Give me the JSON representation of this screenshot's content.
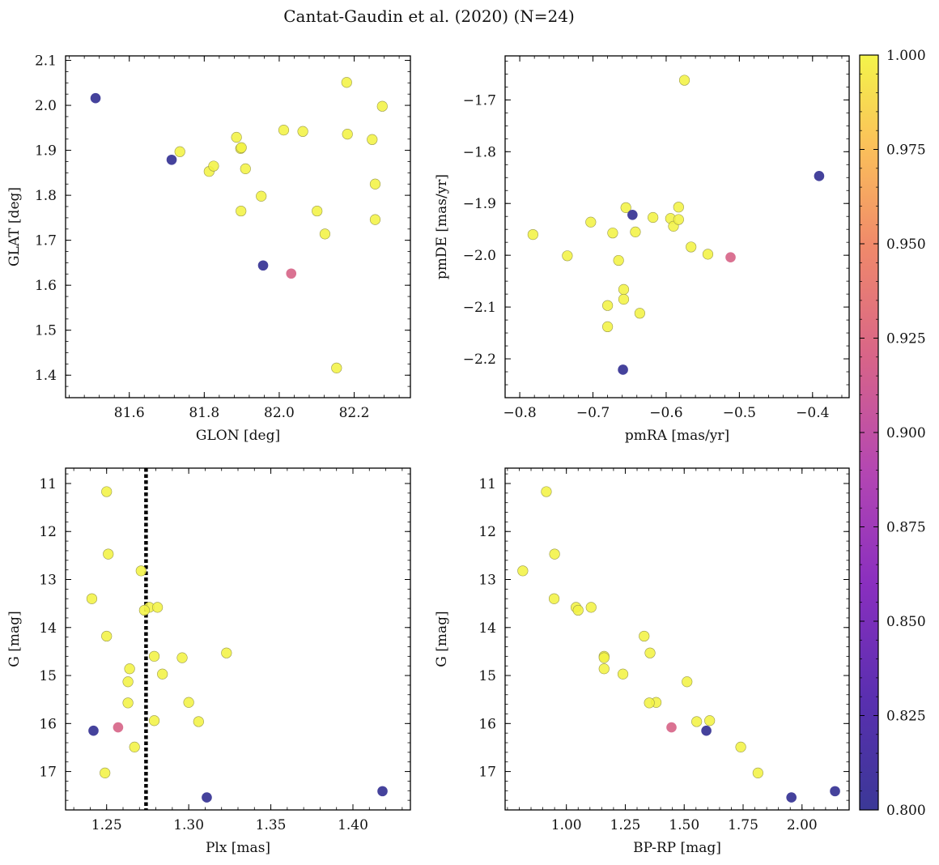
{
  "figure": {
    "title": "Cantat-Gaudin et al. (2020) (N=24)",
    "colorbar": {
      "vmin": 0.8,
      "vmax": 1.0,
      "ticks": [
        0.8,
        0.825,
        0.85,
        0.875,
        0.9,
        0.925,
        0.95,
        0.975,
        1.0
      ],
      "tick_labels": [
        "0.800",
        "0.825",
        "0.850",
        "0.875",
        "0.900",
        "0.925",
        "0.950",
        "0.975",
        "1.000"
      ],
      "colormap": "plasma"
    }
  },
  "chart_data": [
    {
      "type": "scatter",
      "name": "glon-glat",
      "title": "",
      "xlabel": "GLON [deg]",
      "ylabel": "GLAT [deg]",
      "xlim": [
        81.43,
        82.35
      ],
      "ylim": [
        1.35,
        2.11
      ],
      "y_inverted": false,
      "xticks": [
        81.6,
        81.8,
        82.0,
        82.2
      ],
      "xtick_labels": [
        "81.6",
        "81.8",
        "82.0",
        "82.2"
      ],
      "yticks": [
        1.4,
        1.5,
        1.6,
        1.7,
        1.8,
        1.9,
        2.0,
        2.1
      ],
      "ytick_labels": [
        "1.4",
        "1.5",
        "1.6",
        "1.7",
        "1.8",
        "1.9",
        "2.0",
        "2.1"
      ],
      "points": [
        {
          "x": 81.51,
          "y": 2.016,
          "c": 0.8
        },
        {
          "x": 81.713,
          "y": 1.879,
          "c": 0.8
        },
        {
          "x": 81.957,
          "y": 1.644,
          "c": 0.8
        },
        {
          "x": 82.032,
          "y": 1.626,
          "c": 0.9
        },
        {
          "x": 81.735,
          "y": 1.897,
          "c": 1.0
        },
        {
          "x": 81.813,
          "y": 1.853,
          "c": 1.0
        },
        {
          "x": 81.825,
          "y": 1.865,
          "c": 1.0
        },
        {
          "x": 81.886,
          "y": 1.929,
          "c": 1.0
        },
        {
          "x": 81.897,
          "y": 1.904,
          "c": 1.0
        },
        {
          "x": 81.899,
          "y": 1.906,
          "c": 1.0
        },
        {
          "x": 81.898,
          "y": 1.765,
          "c": 1.0
        },
        {
          "x": 81.91,
          "y": 1.859,
          "c": 1.0
        },
        {
          "x": 81.952,
          "y": 1.798,
          "c": 1.0
        },
        {
          "x": 82.012,
          "y": 1.945,
          "c": 1.0
        },
        {
          "x": 82.063,
          "y": 1.942,
          "c": 1.0
        },
        {
          "x": 82.101,
          "y": 1.765,
          "c": 1.0
        },
        {
          "x": 82.122,
          "y": 1.714,
          "c": 1.0
        },
        {
          "x": 82.153,
          "y": 1.416,
          "c": 1.0
        },
        {
          "x": 82.18,
          "y": 2.051,
          "c": 1.0
        },
        {
          "x": 82.182,
          "y": 1.936,
          "c": 1.0
        },
        {
          "x": 82.248,
          "y": 1.924,
          "c": 1.0
        },
        {
          "x": 82.256,
          "y": 1.825,
          "c": 1.0
        },
        {
          "x": 82.256,
          "y": 1.746,
          "c": 1.0
        },
        {
          "x": 82.275,
          "y": 1.998,
          "c": 1.0
        }
      ]
    },
    {
      "type": "scatter",
      "name": "pmra-pmde",
      "title": "",
      "xlabel": "pmRA [mas/yr]",
      "ylabel": "pmDE [mas/yr]",
      "xlim": [
        -0.82,
        -0.35
      ],
      "ylim": [
        -2.275,
        -1.615
      ],
      "y_inverted": false,
      "xticks": [
        -0.8,
        -0.7,
        -0.6,
        -0.5,
        -0.4
      ],
      "xtick_labels": [
        "−0.8",
        "−0.7",
        "−0.6",
        "−0.5",
        "−0.4"
      ],
      "yticks": [
        -2.2,
        -2.1,
        -2.0,
        -1.9,
        -1.8,
        -1.7
      ],
      "ytick_labels": [
        "−2.2",
        "−2.1",
        "−2.0",
        "−1.9",
        "−1.8",
        "−1.7"
      ],
      "points": [
        {
          "x": -0.659,
          "y": -2.221,
          "c": 0.8
        },
        {
          "x": -0.646,
          "y": -1.922,
          "c": 0.8
        },
        {
          "x": -0.391,
          "y": -1.847,
          "c": 0.8
        },
        {
          "x": -0.512,
          "y": -2.004,
          "c": 0.9
        },
        {
          "x": -0.782,
          "y": -1.96,
          "c": 1.0
        },
        {
          "x": -0.735,
          "y": -2.001,
          "c": 1.0
        },
        {
          "x": -0.703,
          "y": -1.936,
          "c": 1.0
        },
        {
          "x": -0.68,
          "y": -2.097,
          "c": 1.0
        },
        {
          "x": -0.68,
          "y": -2.138,
          "c": 1.0
        },
        {
          "x": -0.673,
          "y": -1.957,
          "c": 1.0
        },
        {
          "x": -0.665,
          "y": -2.01,
          "c": 1.0
        },
        {
          "x": -0.658,
          "y": -2.066,
          "c": 1.0
        },
        {
          "x": -0.658,
          "y": -2.085,
          "c": 1.0
        },
        {
          "x": -0.655,
          "y": -1.908,
          "c": 1.0
        },
        {
          "x": -0.642,
          "y": -1.955,
          "c": 1.0
        },
        {
          "x": -0.636,
          "y": -2.112,
          "c": 1.0
        },
        {
          "x": -0.618,
          "y": -1.927,
          "c": 1.0
        },
        {
          "x": -0.594,
          "y": -1.929,
          "c": 1.0
        },
        {
          "x": -0.59,
          "y": -1.944,
          "c": 1.0
        },
        {
          "x": -0.583,
          "y": -1.931,
          "c": 1.0
        },
        {
          "x": -0.583,
          "y": -1.907,
          "c": 1.0
        },
        {
          "x": -0.566,
          "y": -1.984,
          "c": 1.0
        },
        {
          "x": -0.575,
          "y": -1.662,
          "c": 1.0
        },
        {
          "x": -0.543,
          "y": -1.998,
          "c": 1.0
        }
      ]
    },
    {
      "type": "scatter",
      "name": "plx-g",
      "title": "",
      "xlabel": "Plx [mas]",
      "ylabel": "G [mag]",
      "xlim": [
        1.225,
        1.435
      ],
      "ylim": [
        17.8,
        10.68
      ],
      "y_inverted": true,
      "vline": {
        "x": 1.274,
        "style": "dotted"
      },
      "xticks": [
        1.25,
        1.3,
        1.35,
        1.4
      ],
      "xtick_labels": [
        "1.25",
        "1.30",
        "1.35",
        "1.40"
      ],
      "yticks": [
        11,
        12,
        13,
        14,
        15,
        16,
        17
      ],
      "ytick_labels": [
        "11",
        "12",
        "13",
        "14",
        "15",
        "16",
        "17"
      ],
      "points": [
        {
          "x": 1.25,
          "y": 11.17,
          "c": 1.0
        },
        {
          "x": 1.251,
          "y": 12.47,
          "c": 1.0
        },
        {
          "x": 1.271,
          "y": 12.82,
          "c": 1.0
        },
        {
          "x": 1.241,
          "y": 13.4,
          "c": 1.0
        },
        {
          "x": 1.276,
          "y": 13.58,
          "c": 1.0
        },
        {
          "x": 1.281,
          "y": 13.58,
          "c": 1.0
        },
        {
          "x": 1.273,
          "y": 13.64,
          "c": 1.0
        },
        {
          "x": 1.25,
          "y": 14.18,
          "c": 1.0
        },
        {
          "x": 1.323,
          "y": 14.53,
          "c": 1.0
        },
        {
          "x": 1.279,
          "y": 14.6,
          "c": 1.0
        },
        {
          "x": 1.296,
          "y": 14.63,
          "c": 1.0
        },
        {
          "x": 1.264,
          "y": 14.86,
          "c": 1.0
        },
        {
          "x": 1.284,
          "y": 14.97,
          "c": 1.0
        },
        {
          "x": 1.263,
          "y": 15.13,
          "c": 1.0
        },
        {
          "x": 1.3,
          "y": 15.56,
          "c": 1.0
        },
        {
          "x": 1.263,
          "y": 15.57,
          "c": 1.0
        },
        {
          "x": 1.279,
          "y": 15.94,
          "c": 1.0
        },
        {
          "x": 1.306,
          "y": 15.96,
          "c": 1.0
        },
        {
          "x": 1.267,
          "y": 16.49,
          "c": 1.0
        },
        {
          "x": 1.249,
          "y": 17.03,
          "c": 1.0
        },
        {
          "x": 1.242,
          "y": 16.15,
          "c": 0.8
        },
        {
          "x": 1.257,
          "y": 16.08,
          "c": 0.9
        },
        {
          "x": 1.311,
          "y": 17.54,
          "c": 0.8
        },
        {
          "x": 1.418,
          "y": 17.41,
          "c": 0.8
        }
      ]
    },
    {
      "type": "scatter",
      "name": "bprp-g",
      "title": "",
      "xlabel": "BP-RP [mag]",
      "ylabel": "G [mag]",
      "xlim": [
        0.74,
        2.2
      ],
      "ylim": [
        17.8,
        10.68
      ],
      "y_inverted": true,
      "xticks": [
        1.0,
        1.25,
        1.5,
        1.75,
        2.0
      ],
      "xtick_labels": [
        "1.00",
        "1.25",
        "1.50",
        "1.75",
        "2.00"
      ],
      "yticks": [
        11,
        12,
        13,
        14,
        15,
        16,
        17
      ],
      "ytick_labels": [
        "11",
        "12",
        "13",
        "14",
        "15",
        "16",
        "17"
      ],
      "points": [
        {
          "x": 0.915,
          "y": 11.17,
          "c": 1.0
        },
        {
          "x": 0.95,
          "y": 12.47,
          "c": 1.0
        },
        {
          "x": 0.815,
          "y": 12.82,
          "c": 1.0
        },
        {
          "x": 0.948,
          "y": 13.4,
          "c": 1.0
        },
        {
          "x": 1.041,
          "y": 13.58,
          "c": 1.0
        },
        {
          "x": 1.105,
          "y": 13.58,
          "c": 1.0
        },
        {
          "x": 1.05,
          "y": 13.64,
          "c": 1.0
        },
        {
          "x": 1.33,
          "y": 14.18,
          "c": 1.0
        },
        {
          "x": 1.355,
          "y": 14.53,
          "c": 1.0
        },
        {
          "x": 1.16,
          "y": 14.6,
          "c": 1.0
        },
        {
          "x": 1.16,
          "y": 14.63,
          "c": 1.0
        },
        {
          "x": 1.16,
          "y": 14.86,
          "c": 1.0
        },
        {
          "x": 1.24,
          "y": 14.97,
          "c": 1.0
        },
        {
          "x": 1.512,
          "y": 15.13,
          "c": 1.0
        },
        {
          "x": 1.381,
          "y": 15.56,
          "c": 1.0
        },
        {
          "x": 1.352,
          "y": 15.57,
          "c": 1.0
        },
        {
          "x": 1.608,
          "y": 15.94,
          "c": 1.0
        },
        {
          "x": 1.553,
          "y": 15.96,
          "c": 1.0
        },
        {
          "x": 1.74,
          "y": 16.49,
          "c": 1.0
        },
        {
          "x": 1.813,
          "y": 17.03,
          "c": 1.0
        },
        {
          "x": 1.594,
          "y": 16.15,
          "c": 0.8
        },
        {
          "x": 1.446,
          "y": 16.08,
          "c": 0.9
        },
        {
          "x": 1.955,
          "y": 17.54,
          "c": 0.8
        },
        {
          "x": 2.14,
          "y": 17.41,
          "c": 0.8
        }
      ]
    }
  ]
}
